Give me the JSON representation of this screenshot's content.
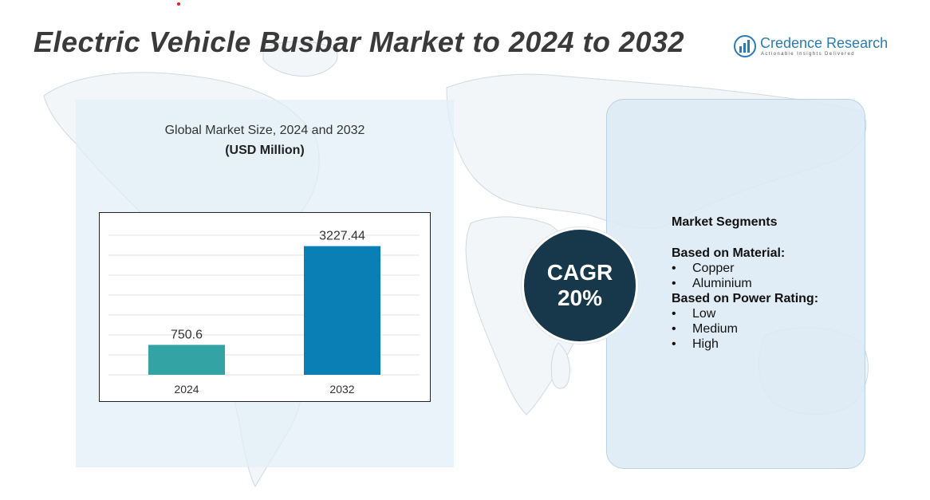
{
  "title": "Electric Vehicle Busbar Market to 2024 to 2032",
  "logo": {
    "name": "Credence Research",
    "tagline": "Actionable Insights Delivered",
    "icon": "bar-chart-circle-icon"
  },
  "colors": {
    "accent_dot": "#e02020",
    "bar_2024": "#34a3a3",
    "bar_2032": "#0a7fb5",
    "cagr_circle": "#17384a"
  },
  "chart_data": {
    "type": "bar",
    "title": "Global Market Size, 2024 and 2032",
    "subtitle": "(USD Million)",
    "categories": [
      "2024",
      "2032"
    ],
    "values": [
      750.6,
      3227.44
    ],
    "value_labels": [
      "750.6",
      "3227.44"
    ],
    "ylim": [
      0,
      3800
    ],
    "grid": true,
    "legend": "none"
  },
  "cagr": {
    "label": "CAGR",
    "value": "20%"
  },
  "segments": {
    "heading": "Market Segments",
    "groups": [
      {
        "title": "Based on Material:",
        "items": [
          "Copper",
          "Aluminium"
        ]
      },
      {
        "title": "Based on Power Rating:",
        "items": [
          "Low",
          "Medium",
          "High"
        ]
      }
    ]
  }
}
